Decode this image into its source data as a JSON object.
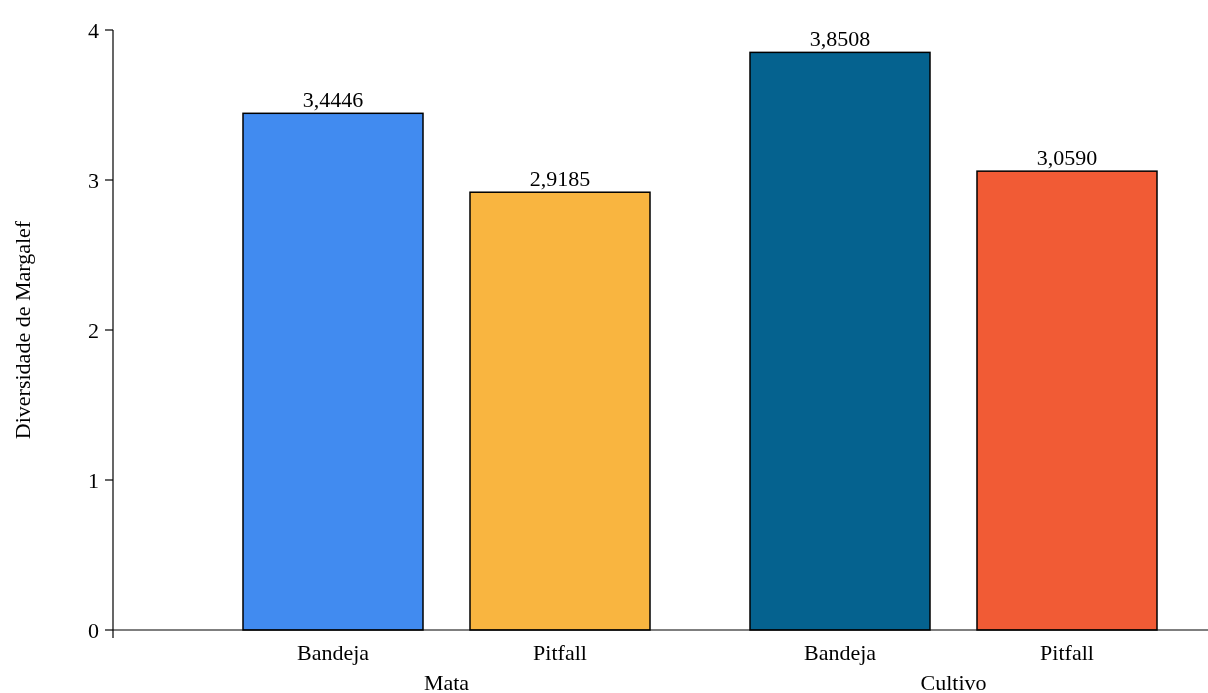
{
  "chart_data": {
    "type": "bar",
    "ylabel": "Diversidade de Margalef",
    "categories": [
      "Bandeja",
      "Pitfall",
      "Bandeja",
      "Pitfall"
    ],
    "values": [
      3.4446,
      2.9185,
      3.8508,
      3.059
    ],
    "colors": [
      "#418bf0",
      "#f9b540",
      "#05628f",
      "#f15b35"
    ],
    "value_labels": [
      "3,4446",
      "2,9185",
      "3,8508",
      "3,0590"
    ],
    "annotations": [
      "Mata",
      "Cultivo"
    ],
    "ylim": [
      0,
      4
    ],
    "yticks": [
      0,
      1,
      2,
      3,
      4
    ],
    "grid": false
  }
}
